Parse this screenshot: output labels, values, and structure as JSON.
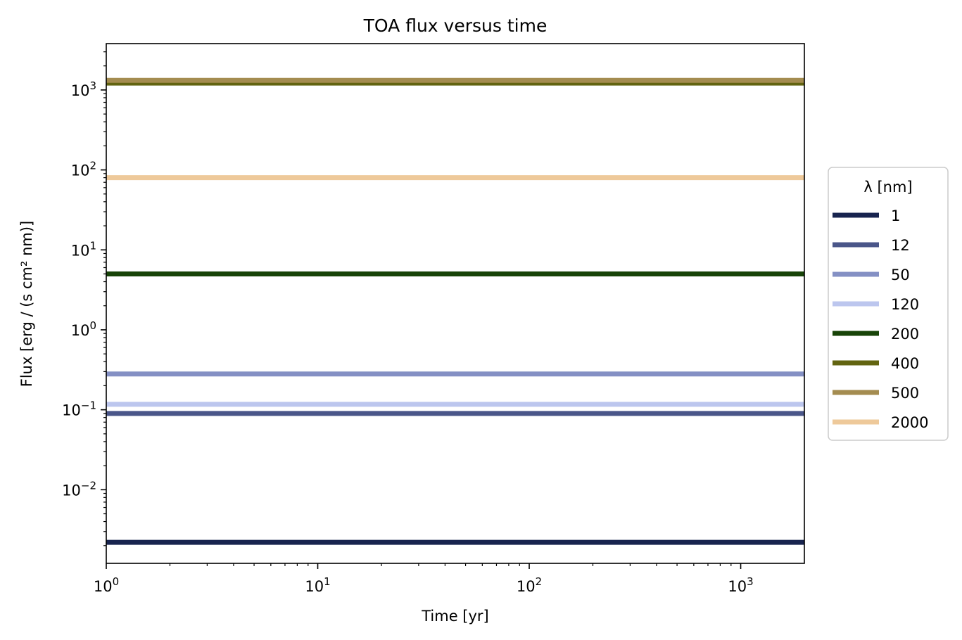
{
  "chart_data": {
    "type": "line",
    "title": "TOA flux versus time",
    "xlabel": "Time [yr]",
    "ylabel": "Flux [erg / (s cm² nm)]",
    "xscale": "log",
    "yscale": "log",
    "xlim": [
      1,
      2000
    ],
    "ylim": [
      0.0012,
      3800
    ],
    "x_ticks": [
      {
        "value": 1,
        "base": "10",
        "exp": "0"
      },
      {
        "value": 10,
        "base": "10",
        "exp": "1"
      },
      {
        "value": 100,
        "base": "10",
        "exp": "2"
      },
      {
        "value": 1000,
        "base": "10",
        "exp": "3"
      }
    ],
    "y_ticks": [
      {
        "value": 0.01,
        "base": "10",
        "exp": "−2"
      },
      {
        "value": 0.1,
        "base": "10",
        "exp": "−1"
      },
      {
        "value": 1,
        "base": "10",
        "exp": "0"
      },
      {
        "value": 10,
        "base": "10",
        "exp": "1"
      },
      {
        "value": 100,
        "base": "10",
        "exp": "2"
      },
      {
        "value": 1000,
        "base": "10",
        "exp": "3"
      }
    ],
    "legend_title": "λ [nm]",
    "legend_placement": "center-right outside",
    "grid": false,
    "series": [
      {
        "name": "1",
        "color": "#18244f",
        "x": [
          1,
          2000
        ],
        "y": [
          0.0022,
          0.0022
        ]
      },
      {
        "name": "12",
        "color": "#4a5689",
        "x": [
          1,
          2000
        ],
        "y": [
          0.09,
          0.09
        ]
      },
      {
        "name": "50",
        "color": "#8490c4",
        "x": [
          1,
          2000
        ],
        "y": [
          0.28,
          0.28
        ]
      },
      {
        "name": "120",
        "color": "#bcc6ee",
        "x": [
          1,
          2000
        ],
        "y": [
          0.117,
          0.117
        ]
      },
      {
        "name": "200",
        "color": "#184408",
        "x": [
          1,
          2000
        ],
        "y": [
          5,
          5
        ]
      },
      {
        "name": "400",
        "color": "#626410",
        "x": [
          1,
          2000
        ],
        "y": [
          1220,
          1220
        ]
      },
      {
        "name": "500",
        "color": "#a48c50",
        "x": [
          1,
          2000
        ],
        "y": [
          1320,
          1320
        ]
      },
      {
        "name": "2000",
        "color": "#eec99a",
        "x": [
          1,
          2000
        ],
        "y": [
          80,
          80
        ]
      }
    ]
  }
}
